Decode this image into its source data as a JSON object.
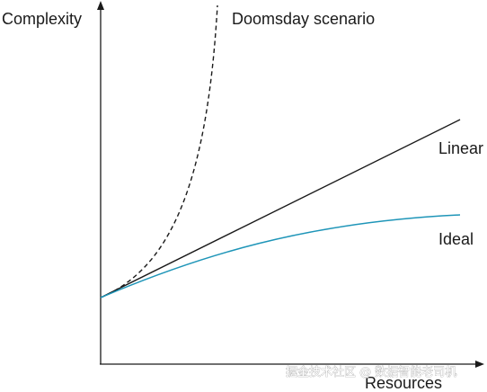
{
  "axes": {
    "y_label": "Complexity",
    "x_label": "Resources"
  },
  "curves": {
    "doomsday": {
      "label": "Doomsday scenario",
      "color": "#1a1a1a",
      "style": "dashed"
    },
    "linear": {
      "label": "Linear",
      "color": "#1a1a1a",
      "style": "solid"
    },
    "ideal": {
      "label": "Ideal",
      "color": "#1e95b8",
      "style": "solid"
    }
  },
  "watermark": {
    "text": "掘金技术社区 @ 数据智能老司机"
  }
}
